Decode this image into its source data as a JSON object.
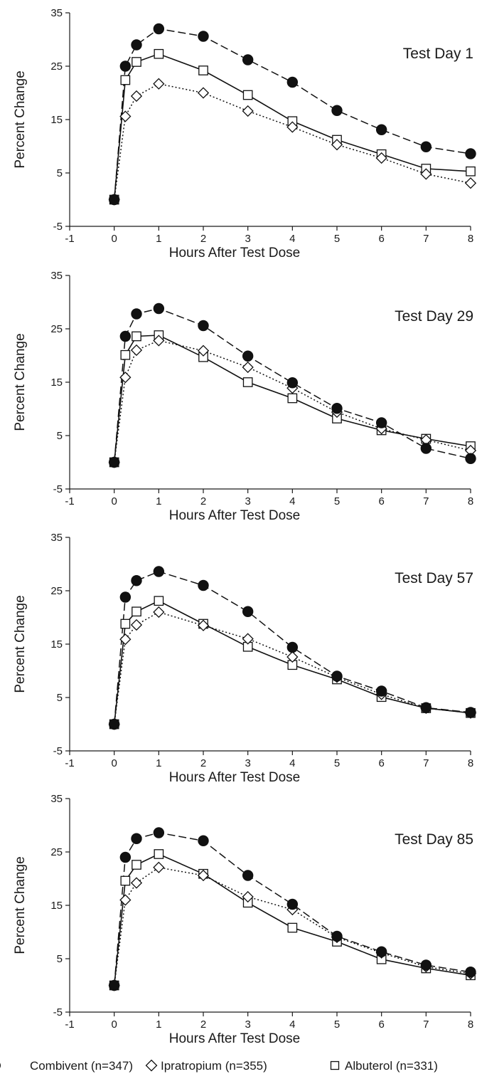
{
  "chart_data": [
    {
      "type": "line",
      "title": "Test Day 1",
      "xlabel": "Hours After Test Dose",
      "ylabel": "Percent Change",
      "xlim": [
        -1,
        8
      ],
      "ylim": [
        -5,
        35
      ],
      "xticks": [
        -1,
        0,
        1,
        2,
        3,
        4,
        5,
        6,
        7,
        8
      ],
      "yticks": [
        -5,
        5,
        15,
        25,
        35
      ],
      "x": [
        0,
        0.25,
        0.5,
        1,
        2,
        3,
        4,
        5,
        6,
        7,
        8
      ],
      "series": [
        {
          "key": "combivent",
          "values": [
            0,
            25,
            29,
            32,
            30.6,
            26.2,
            22,
            16.7,
            13.1,
            9.9,
            8.6
          ]
        },
        {
          "key": "ipratropium",
          "values": [
            0,
            15.6,
            19.4,
            21.7,
            20,
            16.6,
            13.6,
            10.3,
            7.8,
            4.8,
            3.1
          ]
        },
        {
          "key": "albuterol",
          "values": [
            0,
            22.4,
            25.8,
            27.3,
            24.2,
            19.6,
            14.7,
            11.2,
            8.5,
            5.8,
            5.3
          ]
        }
      ]
    },
    {
      "type": "line",
      "title": "Test Day 29",
      "xlabel": "Hours After Test Dose",
      "ylabel": "Percent Change",
      "xlim": [
        -1,
        8
      ],
      "ylim": [
        -5,
        35
      ],
      "xticks": [
        -1,
        0,
        1,
        2,
        3,
        4,
        5,
        6,
        7,
        8
      ],
      "yticks": [
        -5,
        5,
        15,
        25,
        35
      ],
      "x": [
        0,
        0.25,
        0.5,
        1,
        2,
        3,
        4,
        5,
        6,
        7,
        8
      ],
      "series": [
        {
          "key": "combivent",
          "values": [
            0,
            23.6,
            27.8,
            28.8,
            25.6,
            19.9,
            14.9,
            10.1,
            7.4,
            2.6,
            0.7
          ]
        },
        {
          "key": "ipratropium",
          "values": [
            0,
            15.9,
            21,
            22.8,
            20.9,
            17.8,
            13.9,
            9.4,
            6.3,
            4.2,
            2.2
          ]
        },
        {
          "key": "albuterol",
          "values": [
            0,
            20.1,
            23.6,
            23.8,
            19.7,
            15,
            12,
            8.2,
            6,
            4.4,
            3
          ]
        }
      ]
    },
    {
      "type": "line",
      "title": "Test Day 57",
      "xlabel": "Hours After Test Dose",
      "ylabel": "Percent Change",
      "xlim": [
        -1,
        8
      ],
      "ylim": [
        -5,
        35
      ],
      "xticks": [
        -1,
        0,
        1,
        2,
        3,
        4,
        5,
        6,
        7,
        8
      ],
      "yticks": [
        -5,
        5,
        15,
        25,
        35
      ],
      "x": [
        0,
        0.25,
        0.5,
        1,
        2,
        3,
        4,
        5,
        6,
        7,
        8
      ],
      "series": [
        {
          "key": "combivent",
          "values": [
            0,
            23.8,
            26.9,
            28.6,
            26,
            21.1,
            14.4,
            9,
            6.2,
            3.1,
            2.2
          ]
        },
        {
          "key": "ipratropium",
          "values": [
            0,
            15.9,
            18.6,
            21,
            18.5,
            16,
            12.6,
            8.8,
            5.6,
            3,
            2.1
          ]
        },
        {
          "key": "albuterol",
          "values": [
            0,
            18.8,
            21.1,
            23.1,
            18.8,
            14.5,
            11.1,
            8.4,
            5.1,
            3,
            2.1
          ]
        }
      ]
    },
    {
      "type": "line",
      "title": "Test Day 85",
      "xlabel": "Hours After Test Dose",
      "ylabel": "Percent Change",
      "xlim": [
        -1,
        8
      ],
      "ylim": [
        -5,
        35
      ],
      "xticks": [
        -1,
        0,
        1,
        2,
        3,
        4,
        5,
        6,
        7,
        8
      ],
      "yticks": [
        -5,
        5,
        15,
        25,
        35
      ],
      "x": [
        0,
        0.25,
        0.5,
        1,
        2,
        3,
        4,
        5,
        6,
        7,
        8
      ],
      "series": [
        {
          "key": "combivent",
          "values": [
            0,
            24,
            27.5,
            28.6,
            27.1,
            20.6,
            15.2,
            9.2,
            6.3,
            3.8,
            2.5
          ]
        },
        {
          "key": "ipratropium",
          "values": [
            0,
            16,
            19.2,
            22.1,
            20.6,
            16.6,
            14.2,
            9,
            6.1,
            3.5,
            2.2
          ]
        },
        {
          "key": "albuterol",
          "values": [
            0,
            19.6,
            22.6,
            24.6,
            20.9,
            15.5,
            10.8,
            8.2,
            4.9,
            3.2,
            1.9
          ]
        }
      ]
    }
  ],
  "legend": [
    {
      "key": "combivent",
      "marker": "filled-circle",
      "label": "Combivent (n=347)"
    },
    {
      "key": "ipratropium",
      "marker": "open-diamond",
      "label": "Ipratropium (n=355)"
    },
    {
      "key": "albuterol",
      "marker": "open-square",
      "label": "Albuterol (n=331)"
    }
  ],
  "styles": {
    "combivent": {
      "line": "dashed",
      "color": "#111111"
    },
    "ipratropium": {
      "line": "dotted",
      "color": "#111111"
    },
    "albuterol": {
      "line": "solid",
      "color": "#111111"
    }
  }
}
